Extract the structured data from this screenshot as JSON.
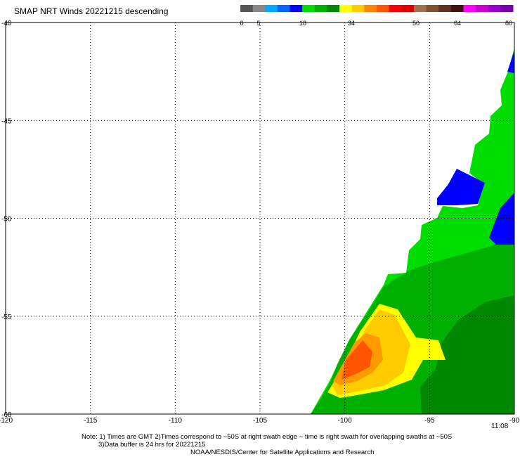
{
  "title": "SMAP NRT Winds  20221215  descending",
  "colorbar": {
    "labels": [
      "0",
      "5",
      "18",
      "34",
      "50",
      "64",
      "80"
    ],
    "label_values": [
      0,
      5,
      18,
      34,
      50,
      64,
      80
    ],
    "segments": [
      {
        "color": "#555555"
      },
      {
        "color": "#888888"
      },
      {
        "color": "#00a8ff"
      },
      {
        "color": "#0066ff"
      },
      {
        "color": "#0000ff"
      },
      {
        "color": "#00dd00"
      },
      {
        "color": "#00b000"
      },
      {
        "color": "#008800"
      },
      {
        "color": "#ffff00"
      },
      {
        "color": "#ffcc00"
      },
      {
        "color": "#ff8800"
      },
      {
        "color": "#ff5500"
      },
      {
        "color": "#ff0000"
      },
      {
        "color": "#e00000"
      },
      {
        "color": "#a07050"
      },
      {
        "color": "#805030"
      },
      {
        "color": "#603020"
      },
      {
        "color": "#401010"
      },
      {
        "color": "#ff00ff"
      },
      {
        "color": "#cc00cc"
      },
      {
        "color": "#9900cc"
      },
      {
        "color": "#7700aa"
      }
    ]
  },
  "map": {
    "lon_range": [
      -120,
      -90
    ],
    "lat_range": [
      -60,
      -40
    ],
    "lon_ticks": [
      "-120",
      "-115",
      "-110",
      "-105",
      "-100",
      "-95",
      "-90"
    ],
    "lat_ticks": [
      "-40",
      "-45",
      "-50",
      "-55",
      "-60"
    ]
  },
  "time_label": "11:08",
  "notes": {
    "line1": "Note: 1) Times are GMT 2)Times correspond to ~50S at right swath edge ~ time is right swath for overlapping swaths at ~50S",
    "line2": "3)Data buffer is 24 hrs for 20221215",
    "line3": "NOAA/NESDIS/Center for Satellite Applications and Research"
  }
}
